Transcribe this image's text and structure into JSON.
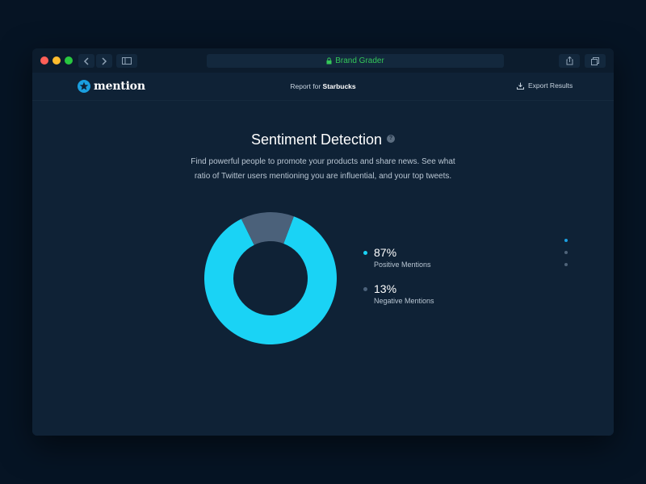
{
  "browser": {
    "address": "Brand Grader",
    "colors": {
      "address_text": "#34c759"
    }
  },
  "header": {
    "logo_text": "mention",
    "report_prefix": "Report for",
    "report_brand": "Starbucks",
    "export_label": "Export Results"
  },
  "section": {
    "title": "Sentiment Detection",
    "help_icon": "?",
    "description": "Find powerful people to promote your products and share news. See what ratio of Twitter users mentioning you are influential, and your top tweets."
  },
  "chart_data": {
    "type": "pie",
    "donut": true,
    "categories": [
      "Positive Mentions",
      "Negative Mentions"
    ],
    "values": [
      87,
      13
    ],
    "value_labels": [
      "87%",
      "13%"
    ],
    "colors": [
      "#1ad3f5",
      "#4b617a"
    ],
    "legend_position": "right"
  },
  "pager": {
    "count": 3,
    "active_index": 0,
    "colors": {
      "active": "#1a9fe0",
      "inactive": "#4f6479"
    }
  },
  "icons": {
    "logo": "star-badge-icon",
    "back": "chevron-left-icon",
    "forward": "chevron-right-icon",
    "sidebar": "sidebar-icon",
    "lock": "lock-icon",
    "share": "share-icon",
    "tabs": "tabs-icon",
    "export": "download-icon"
  }
}
